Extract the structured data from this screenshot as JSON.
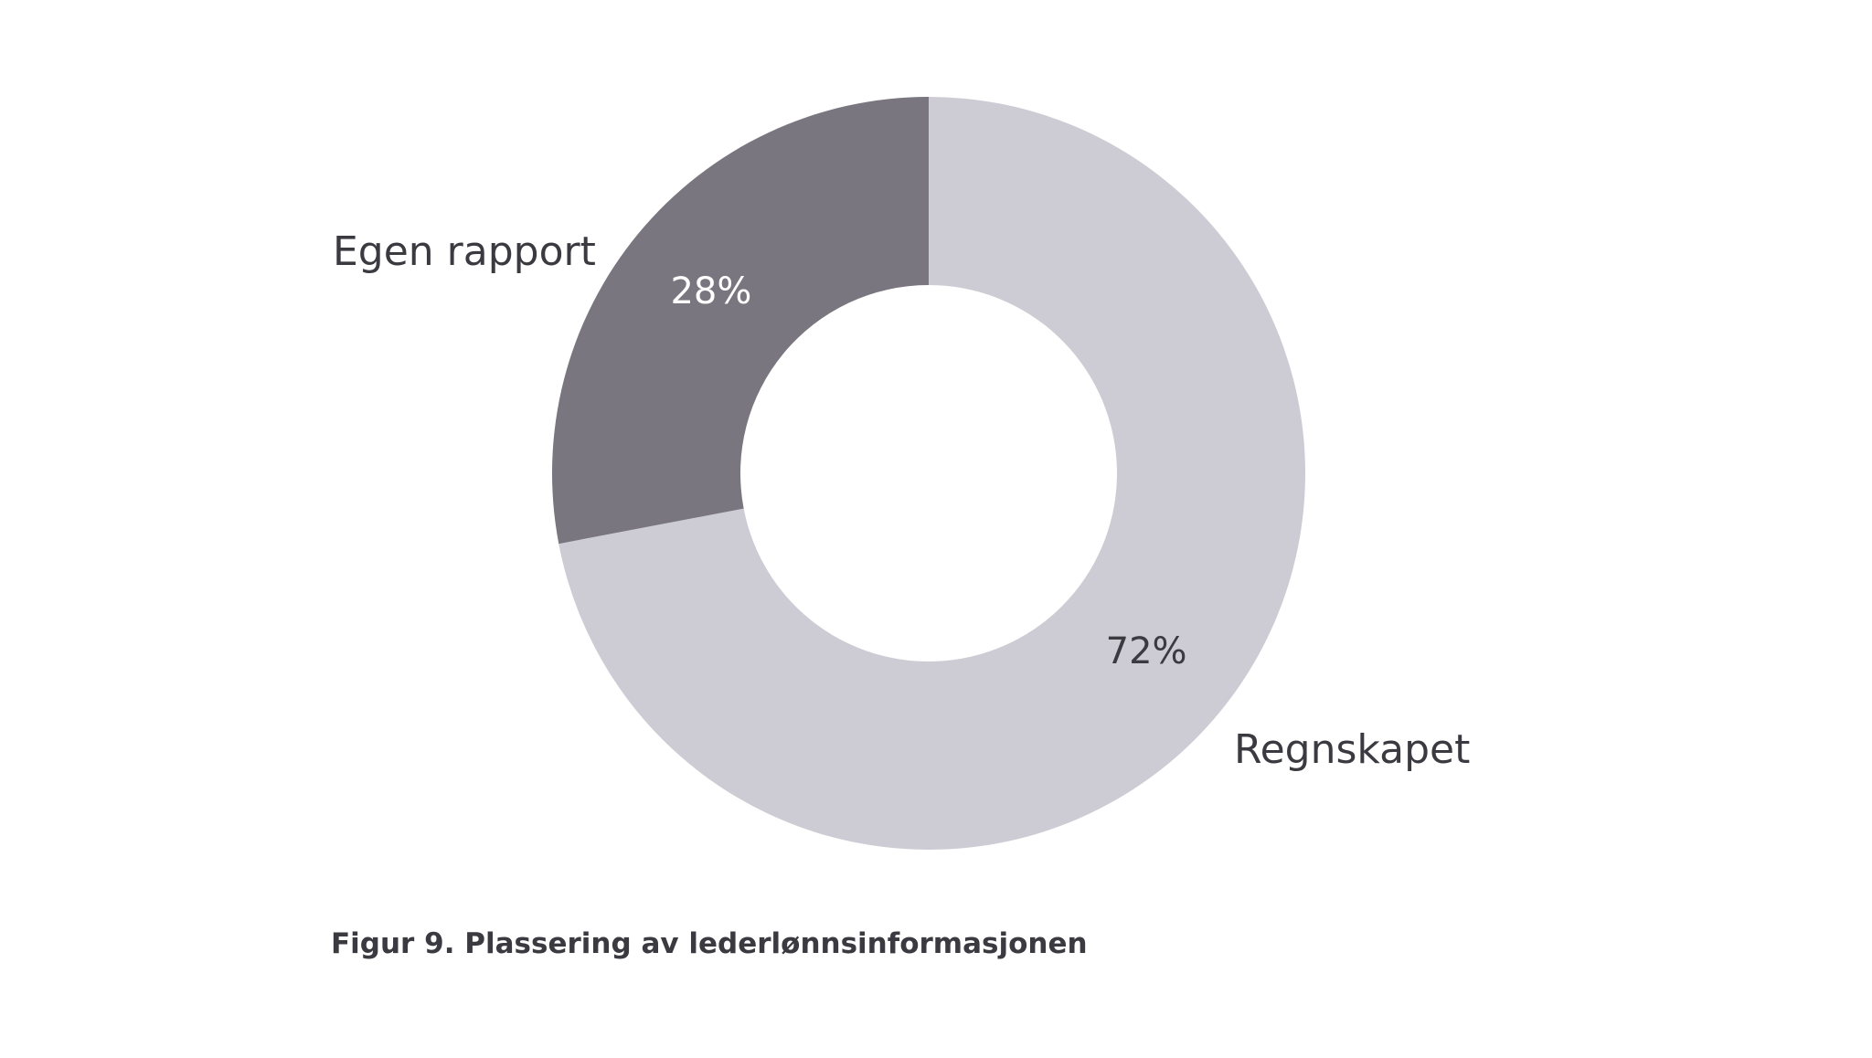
{
  "chart_data": {
    "type": "pie",
    "donut": true,
    "categories": [
      "Regnskapet",
      "Egen rapport"
    ],
    "values": [
      72,
      28
    ],
    "value_labels": [
      "72%",
      "28%"
    ],
    "colors": [
      "#cdccd4",
      "#79767f"
    ],
    "label_colors": [
      "#3b3a40",
      "#ffffff"
    ],
    "start_angle": "12 o'clock, clockwise",
    "legend": "none — category names placed beside slices"
  },
  "caption": "Figur 9. Plassering av lederlønnsinformasjonen"
}
